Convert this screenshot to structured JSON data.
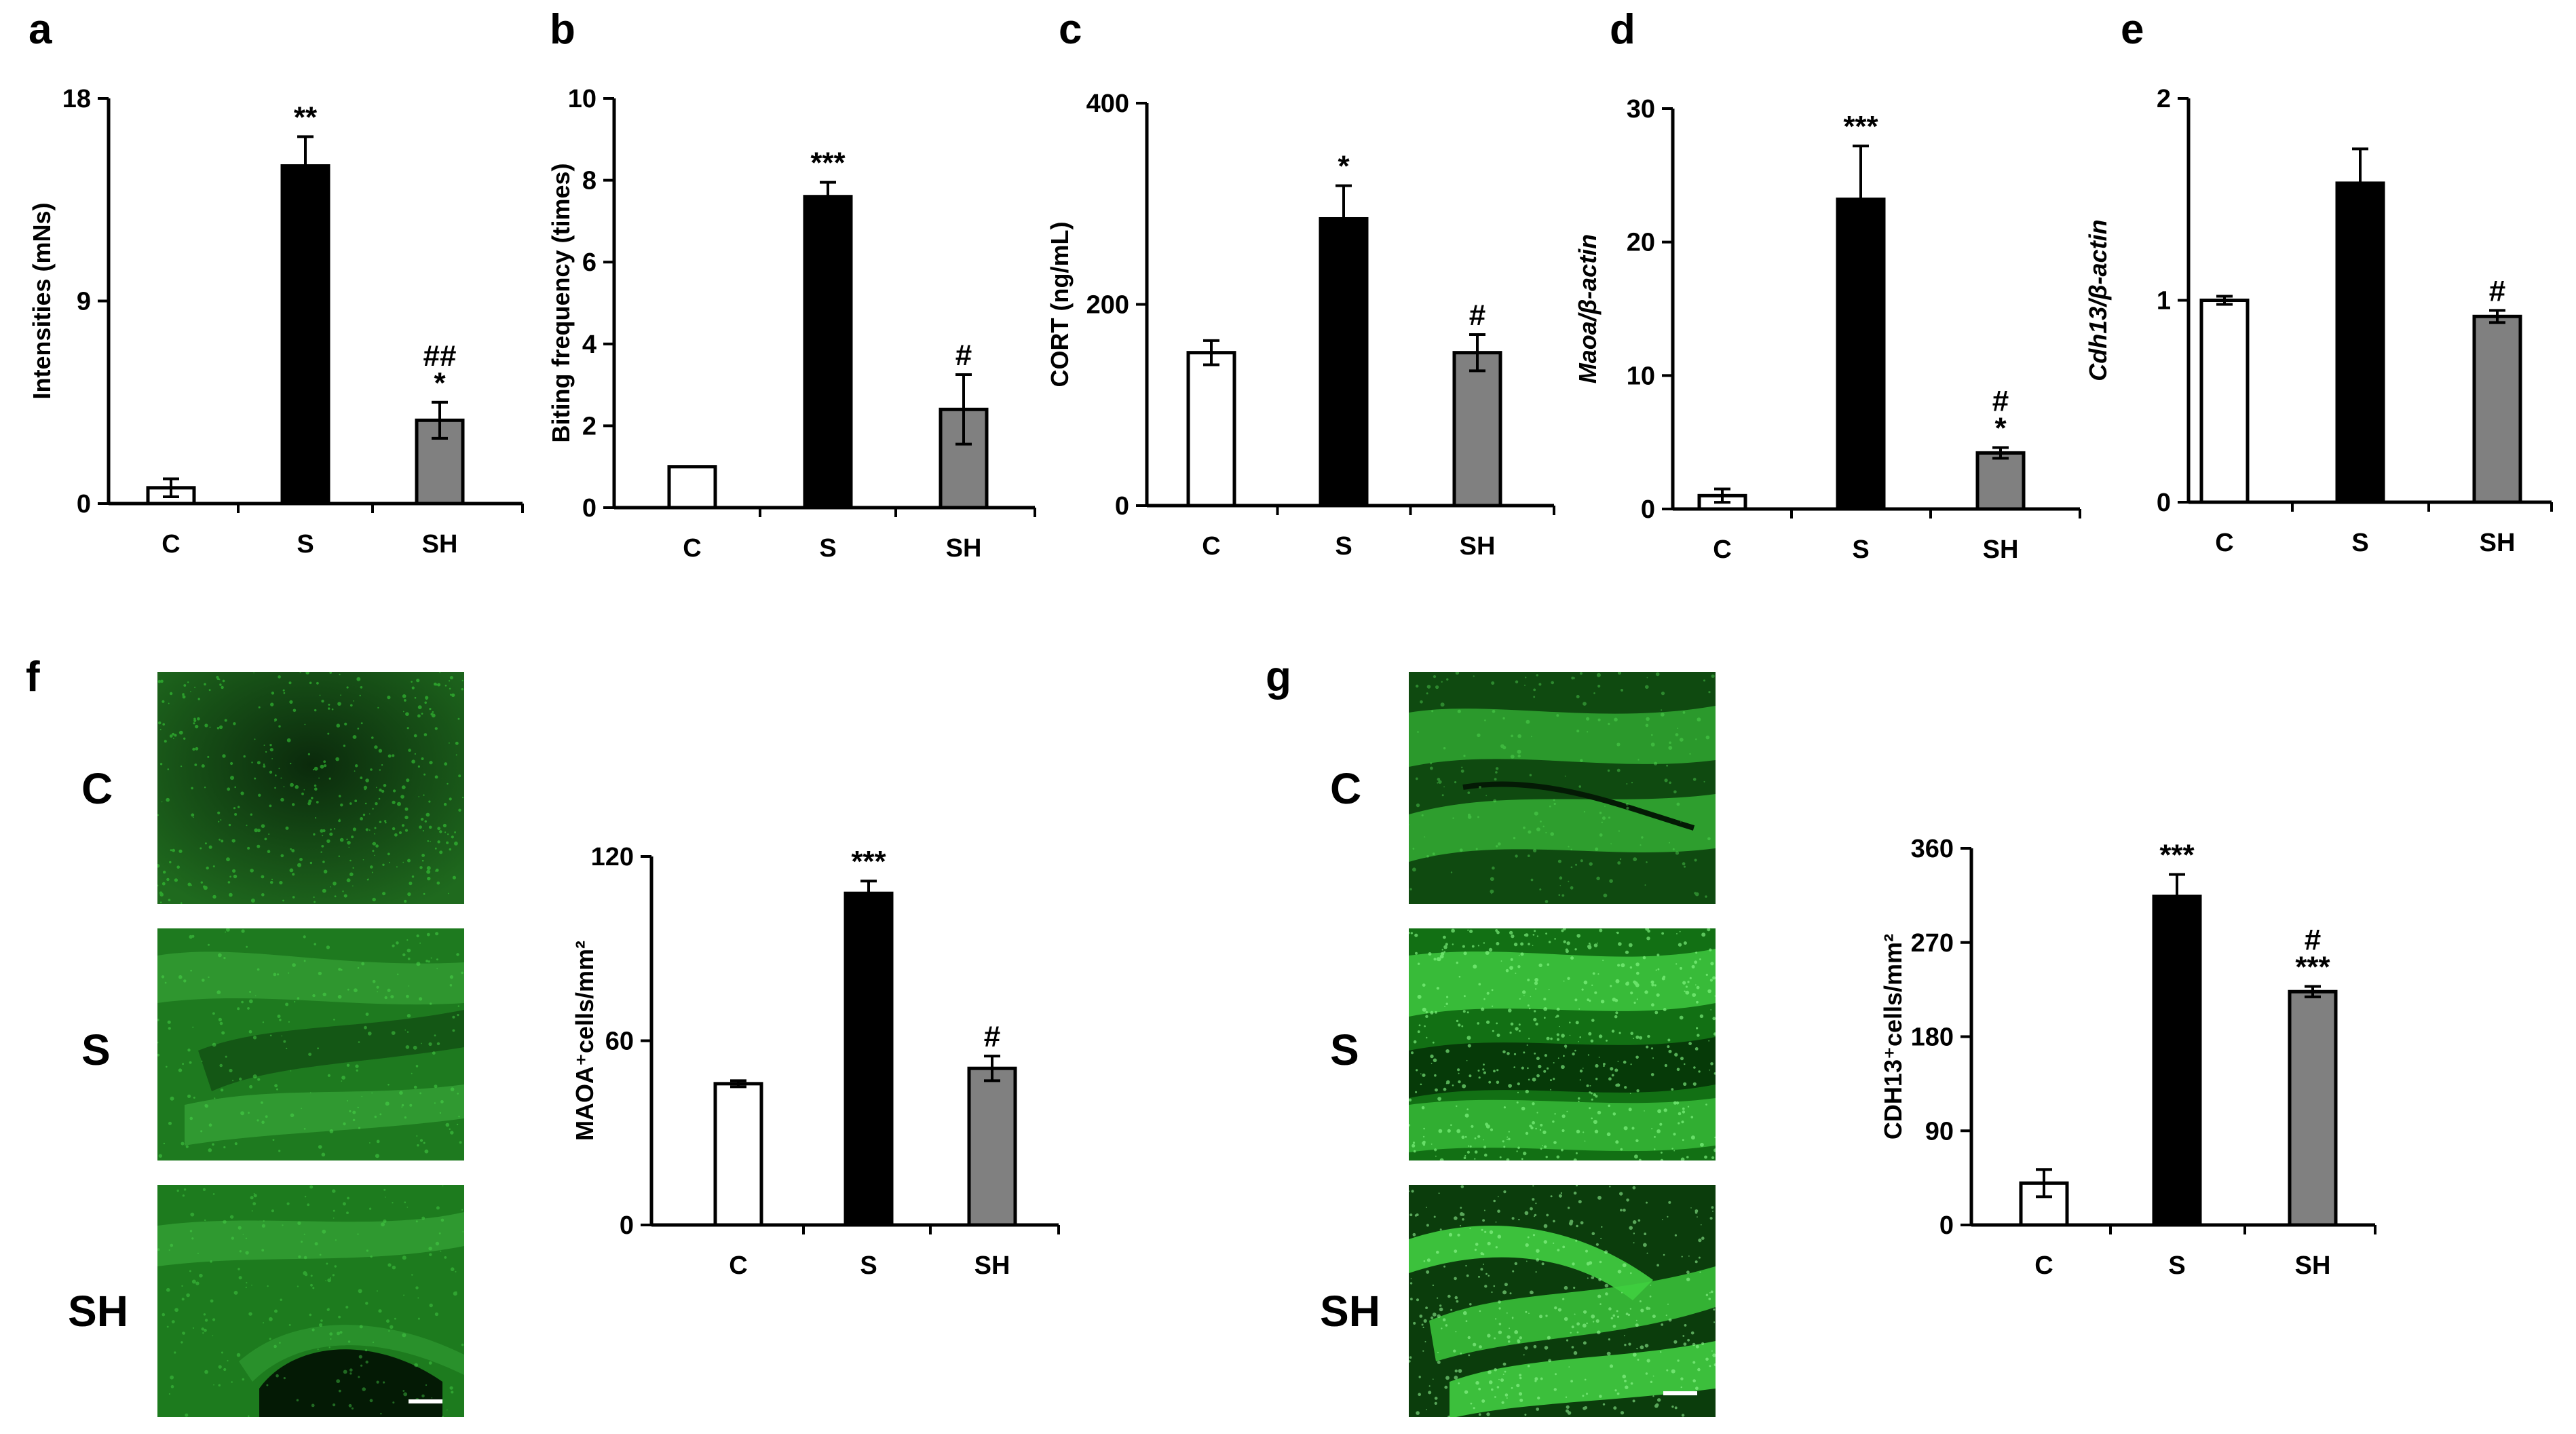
{
  "panels": {
    "a": "a",
    "b": "b",
    "c": "c",
    "d": "d",
    "e": "e",
    "f": "f",
    "g": "g"
  },
  "micrographs": {
    "f": {
      "rows": [
        "C",
        "S",
        "SH"
      ]
    },
    "g": {
      "rows": [
        "C",
        "S",
        "SH"
      ]
    }
  },
  "colors": {
    "C": "#ffffff",
    "S": "#000000",
    "SH": "#808080",
    "fluorescence": "#22c41e"
  },
  "chart_data": [
    {
      "id": "a",
      "type": "bar",
      "categories": [
        "C",
        "S",
        "SH"
      ],
      "values": [
        0.7,
        15,
        3.7
      ],
      "errors": [
        0.4,
        1.3,
        0.8
      ],
      "ylabel": "Intensities (mNs)",
      "ylim": [
        0,
        18
      ],
      "yticks": [
        "0",
        "9",
        "18"
      ],
      "annotations": [
        [
          ""
        ],
        [
          "**"
        ],
        [
          "##",
          "*"
        ]
      ]
    },
    {
      "id": "b",
      "type": "bar",
      "categories": [
        "C",
        "S",
        "SH"
      ],
      "values": [
        1.0,
        7.6,
        2.4
      ],
      "errors": [
        0,
        0.35,
        0.85
      ],
      "ylabel": "Biting frequency (times)",
      "ylim": [
        0,
        10
      ],
      "yticks": [
        "0",
        "2",
        "4",
        "6",
        "8",
        "10"
      ],
      "annotations": [
        [
          ""
        ],
        [
          "***"
        ],
        [
          "#"
        ]
      ]
    },
    {
      "id": "c",
      "type": "bar",
      "categories": [
        "C",
        "S",
        "SH"
      ],
      "values": [
        152,
        285,
        152
      ],
      "errors": [
        12,
        33,
        18
      ],
      "ylabel": "CORT (ng/mL)",
      "ylim": [
        0,
        400
      ],
      "yticks": [
        "0",
        "200",
        "400"
      ],
      "annotations": [
        [
          ""
        ],
        [
          "*"
        ],
        [
          "#"
        ]
      ]
    },
    {
      "id": "d",
      "type": "bar",
      "categories": [
        "C",
        "S",
        "SH"
      ],
      "values": [
        1.0,
        23.2,
        4.2
      ],
      "errors": [
        0.5,
        4.0,
        0.4
      ],
      "ylabel": "Maoa/β-actin",
      "ylim": [
        0,
        30
      ],
      "yticks": [
        "0",
        "10",
        "20",
        "30"
      ],
      "annotations": [
        [
          ""
        ],
        [
          "***"
        ],
        [
          "#",
          "*"
        ]
      ]
    },
    {
      "id": "e",
      "type": "bar",
      "categories": [
        "C",
        "S",
        "SH"
      ],
      "values": [
        1.0,
        1.58,
        0.92
      ],
      "errors": [
        0.02,
        0.17,
        0.03
      ],
      "ylabel": "Cdh13/β-actin",
      "ylim": [
        0,
        2
      ],
      "yticks": [
        "0",
        "1",
        "2"
      ],
      "annotations": [
        [
          ""
        ],
        [
          ""
        ],
        [
          "#"
        ]
      ]
    },
    {
      "id": "f",
      "type": "bar",
      "categories": [
        "C",
        "S",
        "SH"
      ],
      "values": [
        46,
        108,
        51
      ],
      "errors": [
        1,
        4,
        4
      ],
      "ylabel": "MAOA⁺cells/mm²",
      "ylim": [
        0,
        120
      ],
      "yticks": [
        "0",
        "60",
        "120"
      ],
      "annotations": [
        [
          ""
        ],
        [
          "***"
        ],
        [
          "#"
        ]
      ]
    },
    {
      "id": "g",
      "type": "bar",
      "categories": [
        "C",
        "S",
        "SH"
      ],
      "values": [
        40,
        314,
        223
      ],
      "errors": [
        13,
        21,
        5
      ],
      "ylabel": "CDH13⁺cells/mm²",
      "ylim": [
        0,
        360
      ],
      "yticks": [
        "0",
        "90",
        "180",
        "270",
        "360"
      ],
      "annotations": [
        [
          ""
        ],
        [
          "***"
        ],
        [
          "#",
          "***"
        ]
      ]
    }
  ]
}
